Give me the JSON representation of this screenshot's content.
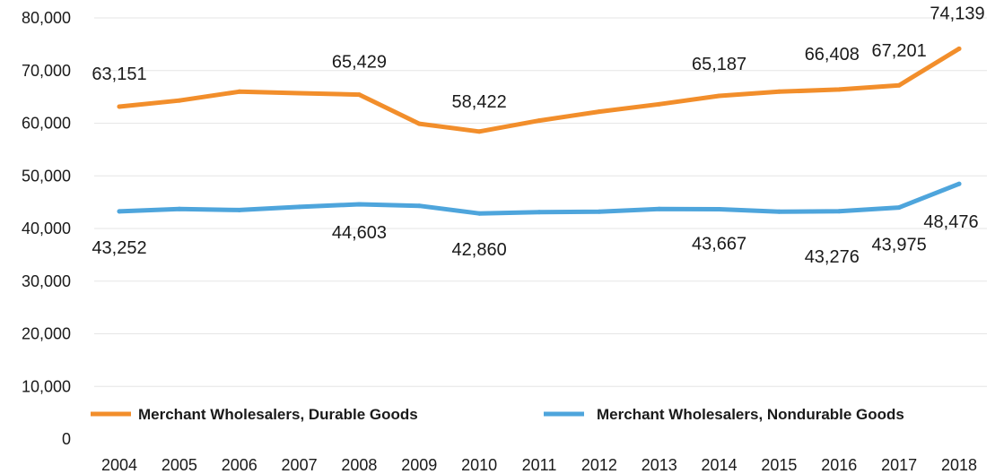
{
  "chart_data": {
    "type": "line",
    "x": [
      "2004",
      "2005",
      "2006",
      "2007",
      "2008",
      "2009",
      "2010",
      "2011",
      "2012",
      "2013",
      "2014",
      "2015",
      "2016",
      "2017",
      "2018"
    ],
    "ylim": [
      0,
      80000
    ],
    "yticks": [
      0,
      10000,
      20000,
      30000,
      40000,
      50000,
      60000,
      70000,
      80000
    ],
    "ytick_labels": [
      "0",
      "10,000",
      "20,000",
      "30,000",
      "40,000",
      "50,000",
      "60,000",
      "70,000",
      "80,000"
    ],
    "grid": true,
    "legend_position": "bottom",
    "series": [
      {
        "name": "Merchant Wholesalers, Durable Goods",
        "color": "#F28E2B",
        "values": [
          63151,
          64300,
          66000,
          65700,
          65429,
          59900,
          58422,
          60500,
          62200,
          63600,
          65187,
          66000,
          66408,
          67201,
          74139
        ],
        "labels": {
          "2004": "63,151",
          "2008": "65,429",
          "2010": "58,422",
          "2014": "65,187",
          "2016": "66,408",
          "2017": "67,201",
          "2018": "74,139"
        }
      },
      {
        "name": "Merchant Wholesalers, Nondurable Goods",
        "color": "#4EA5DC",
        "values": [
          43252,
          43700,
          43500,
          44100,
          44603,
          44300,
          42860,
          43100,
          43200,
          43700,
          43667,
          43200,
          43276,
          43975,
          48476
        ],
        "labels": {
          "2004": "43,252",
          "2008": "44,603",
          "2010": "42,860",
          "2014": "43,667",
          "2016": "43,276",
          "2017": "43,975",
          "2018": "48,476"
        }
      }
    ]
  }
}
